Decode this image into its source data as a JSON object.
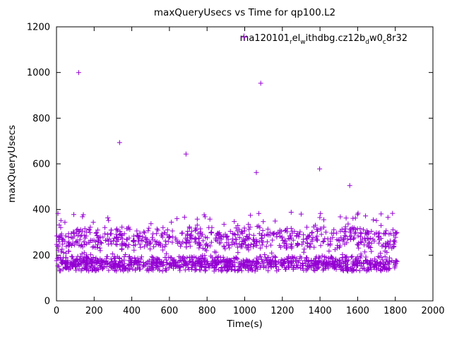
{
  "page": {
    "background": "#ffffff",
    "axis_color": "#000000"
  },
  "chart_data": {
    "type": "scatter",
    "title": "maxQueryUsecs vs Time for qp100.L2",
    "xlabel": "Time(s)",
    "ylabel": "maxQueryUsecs",
    "xlim": [
      0,
      2000
    ],
    "ylim": [
      0,
      1200
    ],
    "xticks": [
      0,
      200,
      400,
      600,
      800,
      1000,
      1200,
      1400,
      1600,
      1800,
      2000
    ],
    "yticks": [
      0,
      200,
      400,
      600,
      800,
      1000,
      1200
    ],
    "grid": false,
    "legend": {
      "position": "top-right-inside",
      "label": "ma120101_rel_withdbg.cz12b_dw0_c8r32",
      "segments": [
        {
          "t": "ma120101"
        },
        {
          "t": "r",
          "sub": true
        },
        {
          "t": "el"
        },
        {
          "t": "w",
          "sub": true
        },
        {
          "t": "ithdbg.cz12b"
        },
        {
          "t": "d",
          "sub": true
        },
        {
          "t": "w0"
        },
        {
          "t": "c",
          "sub": true
        },
        {
          "t": "8r32"
        }
      ]
    },
    "marker": {
      "shape": "plus",
      "color": "#9400d3",
      "size": 3.5
    },
    "series": [
      {
        "name": "ma120101_rel_withdbg.cz12b_dw0_c8r32",
        "x_range": [
          0,
          1810
        ],
        "seed": 20240611,
        "bands": [
          {
            "y_range": [
              130,
              195
            ],
            "count": 650
          },
          {
            "y_range": [
              145,
              178
            ],
            "count": 380
          },
          {
            "y_range": [
              196,
              229
            ],
            "count": 45
          },
          {
            "y_range": [
              230,
              325
            ],
            "count": 430
          },
          {
            "y_range": [
              240,
              300
            ],
            "count": 180
          },
          {
            "y_range": [
              325,
              385
            ],
            "count": 40
          }
        ],
        "outliers": [
          [
            118,
            1000
          ],
          [
            335,
            693
          ],
          [
            688,
            643
          ],
          [
            1062,
            562
          ],
          [
            1085,
            953
          ],
          [
            1398,
            578
          ],
          [
            1558,
            505
          ],
          [
            8,
            383
          ],
          [
            92,
            378
          ],
          [
            640,
            360
          ],
          [
            1075,
            383
          ],
          [
            1247,
            388
          ],
          [
            1300,
            380
          ],
          [
            1642,
            372
          ],
          [
            1508,
            368
          ],
          [
            1700,
            352
          ]
        ]
      }
    ]
  }
}
